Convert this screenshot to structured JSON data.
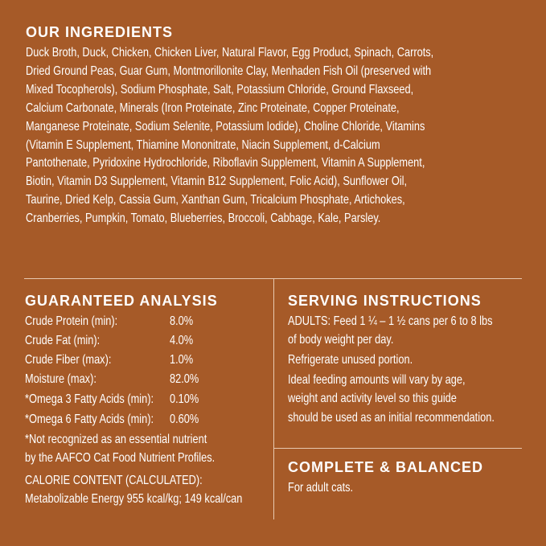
{
  "ingredients": {
    "title": "OUR INGREDIENTS",
    "lines": [
      "Duck Broth, Duck, Chicken, Chicken Liver, Natural Flavor, Egg Product, Spinach, Carrots,",
      "Dried Ground Peas, Guar Gum, Montmorillonite Clay, Menhaden Fish Oil (preserved with",
      "Mixed Tocopherols), Sodium Phosphate, Salt, Potassium Chloride, Ground Flaxseed,",
      "Calcium Carbonate, Minerals (Iron Proteinate, Zinc Proteinate, Copper Proteinate,",
      "Manganese Proteinate, Sodium Selenite, Potassium Iodide), Choline Chloride, Vitamins",
      "(Vitamin E Supplement, Thiamine Mononitrate, Niacin Supplement, d-Calcium",
      "Pantothenate, Pyridoxine Hydrochloride, Riboflavin Supplement, Vitamin A Supplement,",
      "Biotin, Vitamin D3 Supplement, Vitamin B12 Supplement, Folic Acid), Sunflower Oil,",
      "Taurine, Dried Kelp, Cassia Gum, Xanthan Gum, Tricalcium Phosphate, Artichokes,",
      "Cranberries, Pumpkin, Tomato, Blueberries, Broccoli, Cabbage, Kale, Parsley."
    ]
  },
  "analysis": {
    "title": "GUARANTEED ANALYSIS",
    "rows": [
      {
        "label": "Crude Protein (min):",
        "value": "8.0%"
      },
      {
        "label": "Crude Fat (min):",
        "value": "4.0%"
      },
      {
        "label": "Crude Fiber (max):",
        "value": "1.0%"
      },
      {
        "label": "Moisture (max):",
        "value": "82.0%"
      },
      {
        "label": "*Omega 3 Fatty Acids (min):",
        "value": "0.10%"
      },
      {
        "label": "*Omega 6 Fatty Acids (min):",
        "value": "0.60%"
      }
    ],
    "footnote": [
      "*Not recognized as an essential nutrient",
      " by the AAFCO Cat Food Nutrient Profiles."
    ],
    "calorie": [
      "CALORIE CONTENT (CALCULATED):",
      "Metabolizable Energy 955 kcal/kg; 149 kcal/can"
    ]
  },
  "serving": {
    "title": "SERVING INSTRUCTIONS",
    "lines": [
      "ADULTS: Feed 1 ¼ – 1 ½ cans per 6 to 8 lbs",
      "of body weight per day.",
      "Refrigerate unused portion.",
      "Ideal feeding amounts will vary by age,",
      "weight and activity level so this guide",
      "should be used as an initial recommendation."
    ]
  },
  "complete": {
    "title": "COMPLETE & BALANCED",
    "text": "For adult cats."
  },
  "colors": {
    "background": "#a65a28",
    "text": "#ffffff"
  }
}
